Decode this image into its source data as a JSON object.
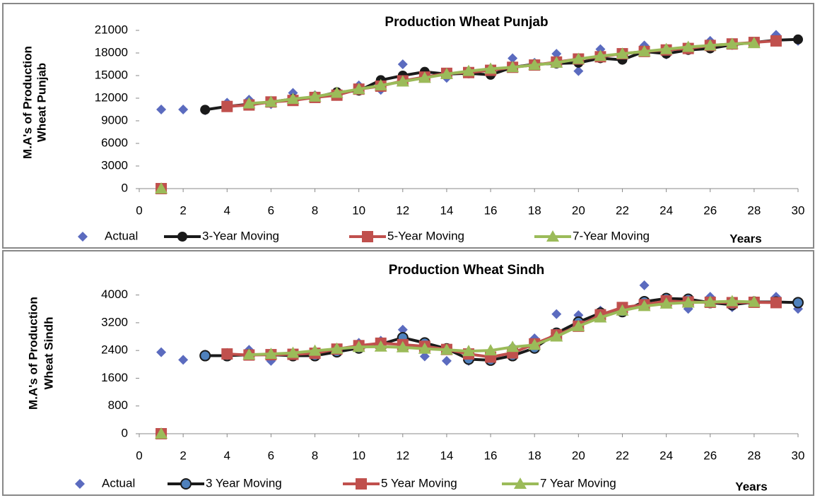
{
  "chart_data": [
    {
      "type": "line",
      "title": "Production Wheat Punjab",
      "y_label": [
        "M.A's of Production",
        "Wheat Punjab"
      ],
      "x_label": "Years",
      "x": [
        1,
        2,
        3,
        4,
        5,
        6,
        7,
        8,
        9,
        10,
        11,
        12,
        13,
        14,
        15,
        16,
        17,
        18,
        19,
        20,
        21,
        22,
        23,
        24,
        25,
        26,
        27,
        28,
        29,
        30
      ],
      "xlim": [
        0,
        30
      ],
      "xticks": [
        0,
        2,
        4,
        6,
        8,
        10,
        12,
        14,
        16,
        18,
        20,
        22,
        24,
        26,
        28,
        30
      ],
      "ylim": [
        0,
        21000
      ],
      "yticks": [
        0,
        3000,
        6000,
        9000,
        12000,
        15000,
        18000,
        21000
      ],
      "series": [
        {
          "name": "Actual",
          "color": "#5b6bbf",
          "marker": "diamond",
          "line": false,
          "values": [
            10500,
            10500,
            10400,
            11400,
            11800,
            11200,
            12700,
            12400,
            12300,
            13700,
            13100,
            16500,
            15400,
            14700,
            15500,
            15600,
            17300,
            16700,
            17900,
            15600,
            18500,
            17100,
            19000,
            17800,
            18500,
            19600,
            19100,
            19500,
            20400,
            19600
          ]
        },
        {
          "name": "3-Year Moving",
          "color": "#1a1a1a",
          "marker": "circle",
          "line": true,
          "values": [
            0,
            null,
            10467,
            10900,
            11200,
            11500,
            11900,
            12100,
            12800,
            13000,
            14400,
            15000,
            15500,
            15200,
            15300,
            15100,
            16100,
            16500,
            16600,
            16700,
            17300,
            17100,
            18200,
            17900,
            18400,
            18600,
            19100,
            19400,
            19700,
            19800
          ]
        },
        {
          "name": "5-Year Moving",
          "color": "#c0504d",
          "marker": "square",
          "line": true,
          "values": [
            0,
            null,
            null,
            10900,
            11100,
            11500,
            11700,
            12100,
            12400,
            13200,
            13600,
            14300,
            14800,
            15300,
            15400,
            15700,
            16100,
            16400,
            16800,
            17200,
            17500,
            17900,
            18200,
            18400,
            18600,
            19000,
            19200,
            19400,
            19600,
            null
          ]
        },
        {
          "name": "7-Year Moving",
          "color": "#9bbb59",
          "marker": "triangle",
          "line": true,
          "values": [
            0,
            null,
            null,
            null,
            11300,
            11500,
            11900,
            12200,
            12700,
            13200,
            13700,
            14200,
            14700,
            15200,
            15600,
            15900,
            16100,
            16400,
            16700,
            17200,
            17600,
            17900,
            18200,
            18500,
            18800,
            19000,
            19200,
            19300,
            null,
            null
          ]
        }
      ]
    },
    {
      "type": "line",
      "title": "Production Wheat Sindh",
      "y_label": [
        "M.A's of Production",
        "Wheat Sindh"
      ],
      "x_label": "Years",
      "x": [
        1,
        2,
        3,
        4,
        5,
        6,
        7,
        8,
        9,
        10,
        11,
        12,
        13,
        14,
        15,
        16,
        17,
        18,
        19,
        20,
        21,
        22,
        23,
        24,
        25,
        26,
        27,
        28,
        29,
        30
      ],
      "xlim": [
        0,
        30
      ],
      "xticks": [
        0,
        2,
        4,
        6,
        8,
        10,
        12,
        14,
        16,
        18,
        20,
        22,
        24,
        26,
        28,
        30
      ],
      "ylim": [
        0,
        4400
      ],
      "yticks": [
        0,
        800,
        1600,
        2400,
        3200,
        4000
      ],
      "series": [
        {
          "name": "Actual",
          "color": "#5b6bbf",
          "marker": "diamond",
          "line": false,
          "values": [
            2350,
            2130,
            2280,
            2330,
            2420,
            2100,
            2310,
            2330,
            2450,
            2620,
            2680,
            3000,
            2230,
            2100,
            2100,
            2150,
            2500,
            2750,
            3450,
            3420,
            3550,
            3600,
            4280,
            3800,
            3600,
            3950,
            3650,
            3800,
            3950,
            3600
          ]
        },
        {
          "name": "3 Year Moving",
          "color": "#1a1a1a",
          "marker": "circle-blue",
          "line": true,
          "values": [
            0,
            null,
            2250,
            2250,
            2280,
            2280,
            2250,
            2250,
            2360,
            2470,
            2580,
            2770,
            2620,
            2450,
            2150,
            2120,
            2250,
            2470,
            2900,
            3220,
            3480,
            3520,
            3810,
            3900,
            3880,
            3780,
            3720,
            3800,
            3800,
            3780
          ]
        },
        {
          "name": "5 Year Moving",
          "color": "#c0504d",
          "marker": "square",
          "line": true,
          "values": [
            0,
            null,
            null,
            2300,
            2270,
            2280,
            2290,
            2320,
            2440,
            2540,
            2610,
            2570,
            2520,
            2430,
            2300,
            2210,
            2330,
            2590,
            2850,
            3100,
            3430,
            3640,
            3720,
            3830,
            3800,
            3790,
            3780,
            3790,
            3780,
            null
          ]
        },
        {
          "name": "7 Year Moving",
          "color": "#9bbb59",
          "marker": "triangle",
          "line": true,
          "values": [
            0,
            null,
            null,
            null,
            2280,
            2300,
            2330,
            2390,
            2450,
            2500,
            2510,
            2490,
            2450,
            2420,
            2380,
            2400,
            2500,
            2560,
            2800,
            3100,
            3350,
            3550,
            3680,
            3750,
            3780,
            3800,
            3820,
            3800,
            null,
            null
          ]
        }
      ]
    }
  ]
}
